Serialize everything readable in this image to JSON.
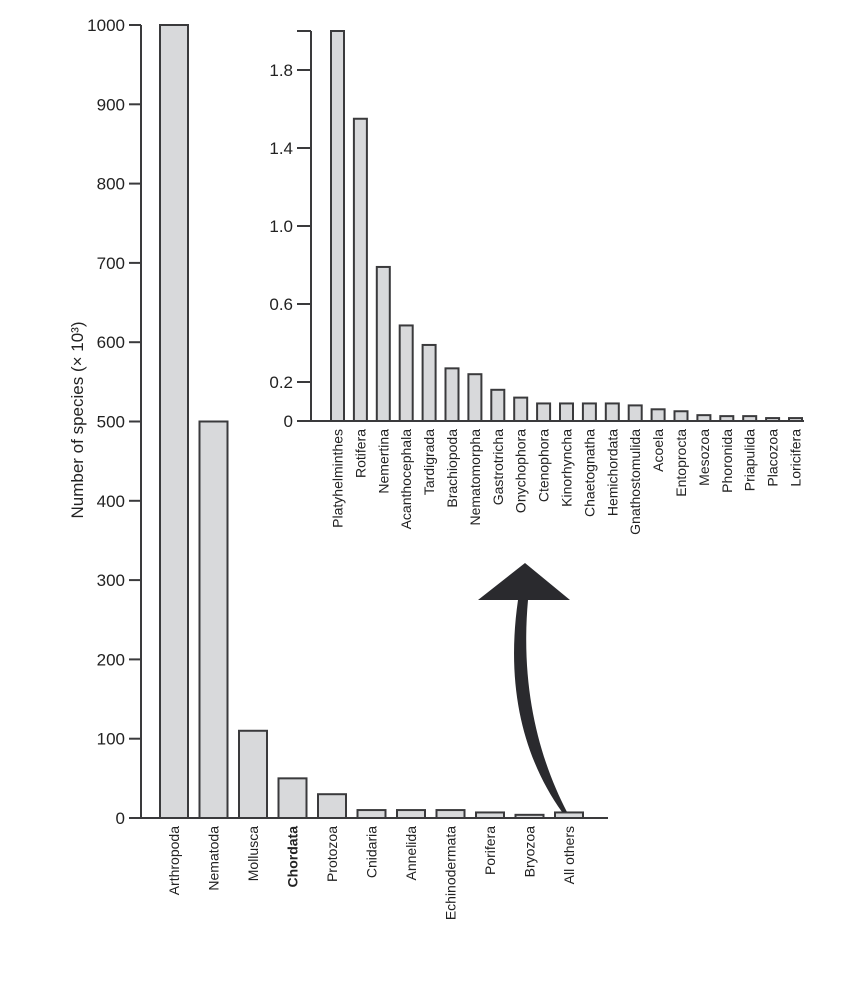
{
  "chart_data": [
    {
      "type": "bar",
      "title": "",
      "xlabel": "",
      "ylabel": "Number of species (× 10³)",
      "ylim": [
        0,
        1000
      ],
      "yticks": [
        0,
        100,
        200,
        300,
        400,
        500,
        600,
        700,
        800,
        900,
        1000
      ],
      "categories": [
        "Arthropoda",
        "Nematoda",
        "Mollusca",
        "Chordata",
        "Protozoa",
        "Cnidaria",
        "Annelida",
        "Echinodermata",
        "Porifera",
        "Bryozoa",
        "All others"
      ],
      "values": [
        1000,
        500,
        110,
        50,
        30,
        10,
        10,
        10,
        7,
        4,
        7
      ],
      "bold_category": "Chordata"
    },
    {
      "type": "bar",
      "title": "",
      "xlabel": "",
      "ylabel": "",
      "ylim": [
        0,
        2.0
      ],
      "yticks": [
        "0",
        "0.2",
        "0.6",
        "1.0",
        "1.4",
        "1.8"
      ],
      "categories": [
        "Platyhelminthes",
        "Rotifera",
        "Nemertina",
        "Acanthocephala",
        "Tardigrada",
        "Brachiopoda",
        "Nematomorpha",
        "Gastrotricha",
        "Onychophora",
        "Ctenophora",
        "Kinorhyncha",
        "Chaetognatha",
        "Hemichordata",
        "Gnathostomulida",
        "Acoela",
        "Entoprocta",
        "Mesozoa",
        "Phoronida",
        "Priapulida",
        "Placozoa",
        "Loricifera"
      ],
      "values": [
        2.0,
        1.55,
        0.79,
        0.49,
        0.39,
        0.27,
        0.24,
        0.16,
        0.12,
        0.09,
        0.09,
        0.09,
        0.09,
        0.08,
        0.06,
        0.05,
        0.03,
        0.025,
        0.025,
        0.015,
        0.015
      ],
      "annotation": "arrow from 'All others' bar to this inset"
    }
  ]
}
